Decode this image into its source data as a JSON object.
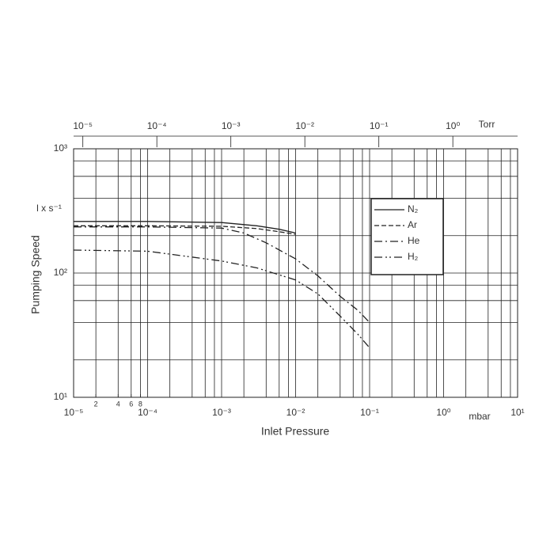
{
  "chart_data": {
    "type": "line",
    "xlabel": "Inlet Pressure",
    "ylabel": "Pumping Speed",
    "y_unit_label": "l x s⁻¹",
    "x_unit_label": "mbar",
    "x2_unit_label": "Torr",
    "xscale": "log",
    "yscale": "log",
    "grid": true,
    "minor_grid": [
      2,
      4,
      6,
      8
    ],
    "xlim": [
      1e-05,
      10
    ],
    "ylim": [
      10,
      1000
    ],
    "x2lim": [
      7.5e-06,
      7.5
    ],
    "xticks": [
      {
        "value": 1e-05,
        "label": "10⁻⁵"
      },
      {
        "value": 2e-05,
        "label": "2"
      },
      {
        "value": 4e-05,
        "label": "4"
      },
      {
        "value": 6e-05,
        "label": "6"
      },
      {
        "value": 8e-05,
        "label": "8"
      },
      {
        "value": 0.0001,
        "label": "10⁻⁴"
      },
      {
        "value": 0.001,
        "label": "10⁻³"
      },
      {
        "value": 0.01,
        "label": "10⁻²"
      },
      {
        "value": 0.1,
        "label": "10⁻¹"
      },
      {
        "value": 1,
        "label": "10⁰"
      },
      {
        "value": 10,
        "label": "10¹"
      }
    ],
    "x2ticks": [
      {
        "value": 1e-05,
        "label": "10⁻⁵"
      },
      {
        "value": 0.0001,
        "label": "10⁻⁴"
      },
      {
        "value": 0.001,
        "label": "10⁻³"
      },
      {
        "value": 0.01,
        "label": "10⁻²"
      },
      {
        "value": 0.1,
        "label": "10⁻¹"
      },
      {
        "value": 1,
        "label": "10⁰"
      }
    ],
    "yticks": [
      {
        "value": 10,
        "label": "10¹"
      },
      {
        "value": 100,
        "label": "10²"
      },
      {
        "value": 1000,
        "label": "10³"
      }
    ],
    "legend": "upper right",
    "series": [
      {
        "name": "N₂",
        "color": "#222222",
        "dash": "solid",
        "x": [
          1e-05,
          0.0001,
          0.001,
          0.003,
          0.006,
          0.01
        ],
        "values": [
          260,
          260,
          255,
          240,
          225,
          210
        ]
      },
      {
        "name": "Ar",
        "color": "#222222",
        "dash": "dashed",
        "x": [
          1e-05,
          0.0001,
          0.001,
          0.003,
          0.006,
          0.01
        ],
        "values": [
          240,
          240,
          238,
          228,
          215,
          205
        ]
      },
      {
        "name": "He",
        "color": "#222222",
        "dash": "dashdot",
        "x": [
          1e-05,
          0.0001,
          0.001,
          0.002,
          0.004,
          0.01,
          0.02,
          0.04,
          0.07,
          0.1
        ],
        "values": [
          235,
          235,
          230,
          210,
          175,
          130,
          95,
          65,
          50,
          40
        ]
      },
      {
        "name": "H₂",
        "color": "#222222",
        "dash": "dashdotdot",
        "x": [
          1e-05,
          0.0001,
          0.001,
          0.003,
          0.01,
          0.02,
          0.04,
          0.07,
          0.1
        ],
        "values": [
          153,
          150,
          125,
          110,
          88,
          68,
          45,
          32,
          25
        ]
      }
    ]
  }
}
